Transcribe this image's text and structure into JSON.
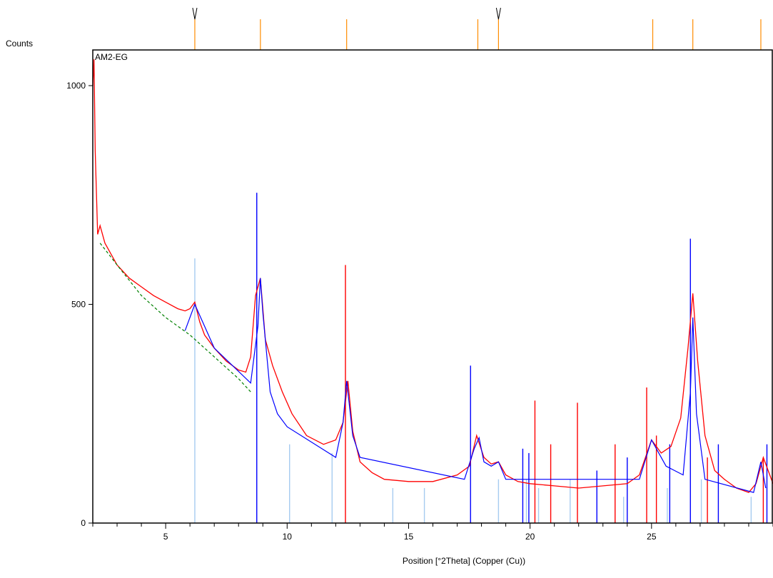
{
  "chart_data": {
    "type": "line",
    "title": "",
    "xlabel": "Position [°2Theta] (Copper (Cu))",
    "ylabel": "Counts",
    "sample_name": "AM2-EG",
    "xlim": [
      2.0,
      30.0
    ],
    "ylim": [
      0,
      1000
    ],
    "x_ticks": [
      5,
      10,
      15,
      20,
      25
    ],
    "y_ticks": [
      0,
      500,
      1000
    ],
    "grid": false,
    "legend": "none",
    "colors": {
      "observed": "#ff0000",
      "background": "#008000",
      "fit": "#0000ff",
      "peak_marker": "#ff8c00",
      "ref_light_blue": "#a6cbf0",
      "ref_blue": "#0000ff",
      "ref_red": "#ff0000"
    },
    "series": [
      {
        "name": "",
        "kind": "observed",
        "x": [
          2.0,
          2.05,
          2.1,
          2.2,
          2.3,
          2.5,
          3.0,
          3.5,
          4.0,
          4.5,
          5.0,
          5.5,
          5.8,
          6.0,
          6.2,
          6.4,
          6.6,
          7.0,
          7.5,
          8.0,
          8.3,
          8.5,
          8.7,
          8.9,
          9.1,
          9.4,
          9.8,
          10.2,
          10.8,
          11.5,
          12.0,
          12.3,
          12.5,
          12.7,
          13.0,
          13.5,
          14.0,
          15.0,
          16.0,
          17.0,
          17.5,
          17.8,
          18.1,
          18.4,
          18.7,
          19.0,
          19.5,
          20.0,
          21.0,
          22.0,
          23.0,
          24.0,
          24.5,
          25.0,
          25.4,
          25.8,
          26.2,
          26.5,
          26.7,
          26.9,
          27.2,
          27.6,
          28.0,
          28.5,
          29.0,
          29.3,
          29.6,
          30.0
        ],
        "values": [
          1000,
          1060,
          850,
          660,
          680,
          640,
          590,
          560,
          540,
          520,
          505,
          490,
          485,
          490,
          505,
          460,
          430,
          400,
          370,
          350,
          345,
          380,
          520,
          560,
          420,
          360,
          300,
          250,
          200,
          180,
          190,
          230,
          325,
          210,
          140,
          115,
          100,
          95,
          95,
          110,
          130,
          200,
          150,
          135,
          140,
          110,
          95,
          90,
          85,
          80,
          85,
          90,
          110,
          190,
          160,
          175,
          240,
          400,
          525,
          370,
          200,
          120,
          100,
          80,
          70,
          90,
          150,
          90
        ]
      },
      {
        "name": "",
        "kind": "background",
        "x": [
          2.3,
          3.0,
          4.0,
          5.0,
          6.0,
          7.0,
          8.0,
          8.5
        ],
        "values": [
          640,
          590,
          520,
          470,
          430,
          380,
          330,
          300
        ]
      },
      {
        "name": "",
        "kind": "fit",
        "x": [
          5.8,
          6.2,
          6.6,
          7.0,
          8.5,
          8.8,
          8.9,
          9.0,
          9.3,
          9.6,
          10.0,
          12.0,
          12.3,
          12.45,
          12.7,
          13.0,
          17.3,
          17.7,
          17.9,
          18.1,
          18.4,
          18.7,
          19.0,
          24.5,
          25.0,
          25.3,
          25.6,
          26.3,
          26.6,
          26.7,
          26.85,
          27.2,
          29.2,
          29.5,
          29.7
        ],
        "values": [
          440,
          500,
          450,
          400,
          320,
          450,
          560,
          480,
          300,
          250,
          220,
          150,
          230,
          325,
          200,
          150,
          100,
          170,
          195,
          140,
          130,
          140,
          100,
          100,
          190,
          160,
          130,
          110,
          300,
          470,
          250,
          100,
          70,
          140,
          80
        ]
      }
    ],
    "peak_markers": {
      "x": [
        6.2,
        8.9,
        12.45,
        17.85,
        18.7,
        25.05,
        26.7,
        29.5
      ],
      "arrow_at": [
        6.2,
        18.7
      ]
    },
    "reference_patterns": [
      {
        "name": "",
        "color": "light_blue",
        "positions": [
          6.2,
          10.1,
          11.85,
          14.35,
          15.65,
          18.7,
          19.85,
          20.35,
          21.65,
          23.85,
          25.65,
          27.05,
          29.1
        ],
        "intensities": [
          605,
          180,
          160,
          80,
          80,
          100,
          100,
          80,
          100,
          60,
          80,
          100,
          60
        ]
      },
      {
        "name": "",
        "color": "blue",
        "positions": [
          8.75,
          17.55,
          19.7,
          19.95,
          22.75,
          24.0,
          25.75,
          26.6,
          27.75,
          29.75
        ],
        "intensities": [
          755,
          360,
          170,
          160,
          120,
          150,
          180,
          650,
          180,
          180
        ]
      },
      {
        "name": "",
        "color": "red",
        "positions": [
          12.4,
          20.2,
          20.85,
          21.95,
          23.5,
          24.8,
          25.2,
          27.3,
          29.6
        ],
        "intensities": [
          590,
          280,
          180,
          275,
          180,
          310,
          200,
          150,
          150
        ]
      }
    ]
  }
}
